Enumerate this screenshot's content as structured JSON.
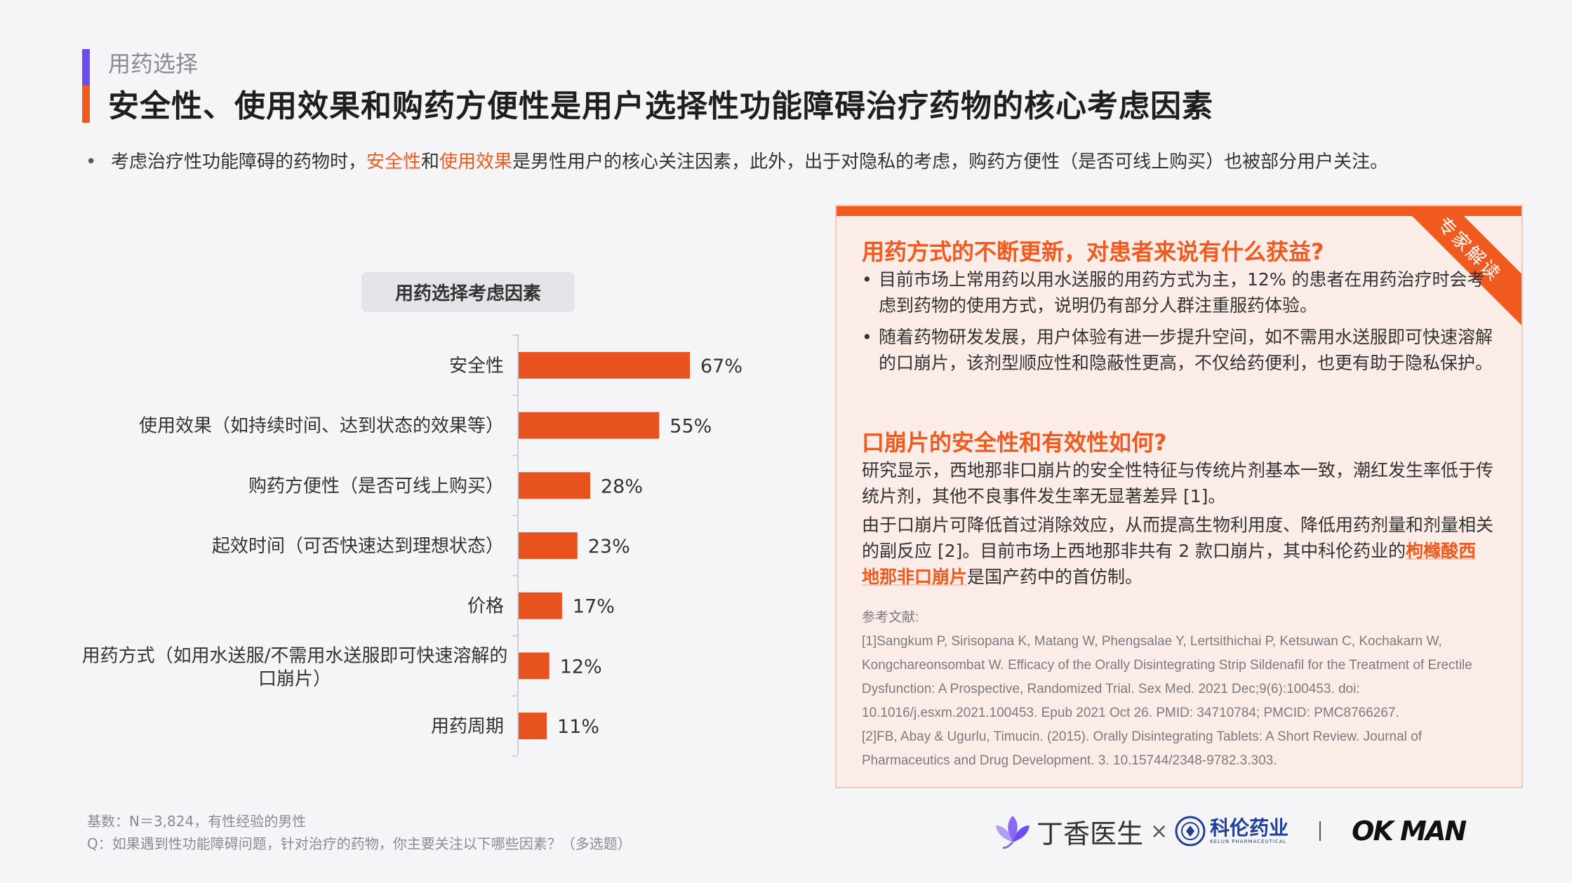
{
  "header": {
    "section_label": "用药选择",
    "title": "安全性、使用效果和购药方便性是用户选择性功能障碍治疗药物的核心考虑因素"
  },
  "summary": {
    "bullet": "•",
    "part1": "考虑治疗性功能障碍的药物时，",
    "hl1": "安全性",
    "part2": "和",
    "hl2": "使用效果",
    "part3": "是男性用户的核心关注因素，此外，出于对隐私的考虑，购药方便性（是否可线上购买）也被部分用户关注。"
  },
  "chart_data": {
    "type": "bar",
    "orientation": "horizontal",
    "title": "用药选择考虑因素",
    "categories": [
      "安全性",
      "使用效果（如持续时间、达到状态的效果等）",
      "购药方便性（是否可线上购买）",
      "起效时间（可否快速达到理想状态）",
      "价格",
      "用药方式（如用水送服/不需用水送服即可快速溶解的口崩片）",
      "用药周期"
    ],
    "values": [
      67,
      55,
      28,
      23,
      17,
      12,
      11
    ],
    "value_labels": [
      "67%",
      "55%",
      "28%",
      "23%",
      "17%",
      "12%",
      "11%"
    ],
    "unit": "%",
    "bar_color": "#e8521f"
  },
  "panel": {
    "ribbon": "专家解读",
    "q1": "用药方式的不断更新，对患者来说有什么获益?",
    "q1_bullets": [
      "目前市场上常用药以用水送服的用药方式为主，12% 的患者在用药治疗时会考虑到药物的使用方式，说明仍有部分人群注重服药体验。",
      "随着药物研发发展，用户体验有进一步提升空间，如不需用水送服即可快速溶解的口崩片，该剂型顺应性和隐蔽性更高，不仅给药便利，也更有助于隐私保护。"
    ],
    "q2": "口崩片的安全性和有效性如何?",
    "q2_para1": "研究显示，西地那非口崩片的安全性特征与传统片剂基本一致，潮红发生率低于传统片剂，其他不良事件发生率无显著差异 [1]。",
    "q2_para2_a": "由于口崩片可降低首过消除效应，从而提高生物利用度、降低用药剂量和剂量相关的副反应 [2]。目前市场上西地那非共有 2 款口崩片，其中科伦药业的",
    "q2_para2_hl": "枸橼酸西地那非口崩片",
    "q2_para2_b": "是国产药中的首仿制。",
    "refs_title": "参考文献:",
    "refs": [
      "[1]Sangkum P, Sirisopana K, Matang W, Phengsalae Y, Lertsithichai P, Ketsuwan C, Kochakarn W,",
      "Kongchareonsombat W. Efficacy of the Orally Disintegrating Strip Sildenafil for the Treatment of Erectile",
      "Dysfunction: A Prospective, Randomized Trial. Sex Med. 2021 Dec;9(6):100453. doi:",
      "10.1016/j.esxm.2021.100453. Epub 2021 Oct 26. PMID: 34710784; PMCID: PMC8766267.",
      "[2]FB, Abay & Ugurlu, Timucin. (2015). Orally Disintegrating Tablets: A Short Review. Journal of",
      "Pharmaceutics and Drug Development. 3. 10.15744/2348-9782.3.303."
    ]
  },
  "footer": {
    "base": "基数：N＝3,824，有性经验的男性",
    "question": "Q：如果遇到性功能障碍问题，针对治疗的药物，你主要关注以下哪些因素？（多选题）"
  },
  "logos": {
    "dxy": "丁香医生",
    "times": "×",
    "kelun_cn": "科伦药业",
    "kelun_en": "KELUN PHARMACEUTICAL",
    "okman": "OK MAN"
  },
  "colors": {
    "accent_orange": "#f05a1f",
    "accent_purple": "#6c4cf0"
  }
}
